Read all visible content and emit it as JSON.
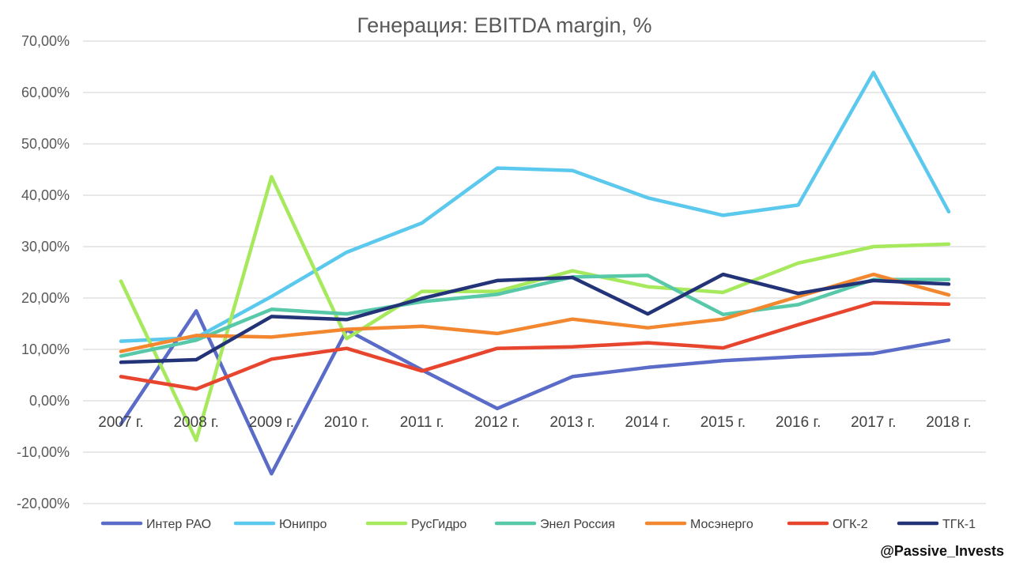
{
  "chart_data": {
    "type": "line",
    "title": "Генерация: EBITDA margin, %",
    "xlabel": "",
    "ylabel": "",
    "ylim": [
      -20,
      70
    ],
    "yticks": [
      70,
      60,
      50,
      40,
      30,
      20,
      10,
      0,
      -10,
      -20
    ],
    "ytick_labels": [
      "70,00%",
      "60,00%",
      "50,00%",
      "40,00%",
      "30,00%",
      "20,00%",
      "10,00%",
      "0,00%",
      "-10,00%",
      "-20,00%"
    ],
    "categories": [
      "2007 г.",
      "2008 г.",
      "2009 г.",
      "2010 г.",
      "2011 г.",
      "2012 г.",
      "2013 г.",
      "2014 г.",
      "2015 г.",
      "2016 г.",
      "2017 г.",
      "2018 г."
    ],
    "grid": true,
    "legend_position": "bottom",
    "series": [
      {
        "name": "Интер РАО",
        "color": "#5B6BC8",
        "values": [
          -4.5,
          17.5,
          -14.2,
          13.8,
          6.0,
          -1.5,
          4.7,
          6.5,
          7.8,
          8.6,
          9.2,
          11.8
        ]
      },
      {
        "name": "Юнипро",
        "color": "#5BC8EE",
        "values": [
          11.6,
          12.3,
          20.3,
          28.9,
          34.6,
          45.3,
          44.8,
          39.5,
          36.1,
          38.1,
          63.9,
          36.8
        ]
      },
      {
        "name": "РусГидро",
        "color": "#A6E95C",
        "values": [
          23.3,
          -7.7,
          43.6,
          12.1,
          21.3,
          21.3,
          25.3,
          22.2,
          21.1,
          26.8,
          30.0,
          30.5
        ]
      },
      {
        "name": "Энел Россия",
        "color": "#57C8A8",
        "values": [
          8.7,
          11.8,
          17.8,
          16.9,
          19.3,
          20.7,
          24.1,
          24.4,
          16.8,
          18.7,
          23.6,
          23.6
        ]
      },
      {
        "name": "Мосэнерго",
        "color": "#F2872F",
        "values": [
          9.6,
          12.7,
          12.4,
          13.9,
          14.5,
          13.1,
          15.9,
          14.2,
          15.9,
          20.3,
          24.6,
          20.6
        ]
      },
      {
        "name": "ОГК-2",
        "color": "#E8452E",
        "values": [
          4.7,
          2.3,
          8.1,
          10.2,
          5.8,
          10.2,
          10.5,
          11.3,
          10.3,
          14.8,
          19.1,
          18.8
        ]
      },
      {
        "name": "ТГК-1",
        "color": "#223377",
        "values": [
          7.5,
          8.0,
          16.4,
          15.8,
          19.9,
          23.4,
          24.0,
          16.9,
          24.6,
          20.9,
          23.4,
          22.7
        ]
      }
    ]
  },
  "watermark": "@Passive_Invests"
}
